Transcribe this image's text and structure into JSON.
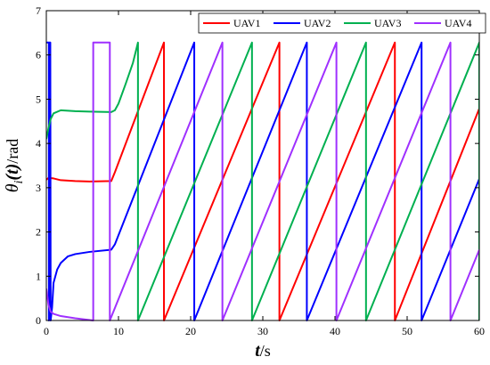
{
  "chart_data": {
    "type": "line",
    "title": "",
    "xlabel": {
      "main": "t",
      "unit": "/s"
    },
    "ylabel": {
      "main": "θ",
      "sub": "i",
      "arg": "(t)",
      "unit": "/rad"
    },
    "xlim": [
      0,
      60
    ],
    "ylim": [
      0,
      7
    ],
    "xticks": [
      0,
      10,
      20,
      30,
      40,
      50,
      60
    ],
    "yticks": [
      0,
      1,
      2,
      3,
      4,
      5,
      6,
      7
    ],
    "grid": false,
    "legend": {
      "position": "top-right",
      "orientation": "horizontal"
    },
    "series": [
      {
        "name": "UAV1",
        "color": "#ff0000",
        "points": [
          [
            0,
            3.18
          ],
          [
            0.3,
            3.22
          ],
          [
            1,
            3.21
          ],
          [
            2,
            3.17
          ],
          [
            4,
            3.15
          ],
          [
            6,
            3.14
          ],
          [
            9,
            3.15
          ],
          [
            9.5,
            3.35
          ],
          [
            16.3,
            6.28
          ],
          [
            16.3,
            0
          ],
          [
            32.3,
            6.28
          ],
          [
            32.3,
            0
          ],
          [
            48.3,
            6.28
          ],
          [
            48.3,
            0
          ],
          [
            60,
            4.79
          ]
        ]
      },
      {
        "name": "UAV2",
        "color": "#0000ff",
        "points": [
          [
            0,
            6.28
          ],
          [
            0.35,
            6.28
          ],
          [
            0.35,
            0
          ],
          [
            0.45,
            6.28
          ],
          [
            0.55,
            6.28
          ],
          [
            0.6,
            0
          ],
          [
            0.8,
            0.3
          ],
          [
            1,
            0.85
          ],
          [
            1.5,
            1.15
          ],
          [
            2,
            1.3
          ],
          [
            3,
            1.45
          ],
          [
            4,
            1.5
          ],
          [
            6,
            1.55
          ],
          [
            9,
            1.6
          ],
          [
            9.5,
            1.72
          ],
          [
            20.5,
            6.28
          ],
          [
            20.5,
            0
          ],
          [
            36.1,
            6.28
          ],
          [
            36.1,
            0
          ],
          [
            52,
            6.28
          ],
          [
            52,
            0
          ],
          [
            60,
            3.2
          ]
        ]
      },
      {
        "name": "UAV3",
        "color": "#00b050",
        "points": [
          [
            0,
            4.1
          ],
          [
            0.3,
            4.35
          ],
          [
            0.6,
            4.55
          ],
          [
            1,
            4.68
          ],
          [
            2,
            4.75
          ],
          [
            4,
            4.73
          ],
          [
            6,
            4.72
          ],
          [
            9,
            4.71
          ],
          [
            9.5,
            4.75
          ],
          [
            10,
            4.9
          ],
          [
            11,
            5.35
          ],
          [
            12,
            5.82
          ],
          [
            12.7,
            6.28
          ],
          [
            12.7,
            0
          ],
          [
            28.5,
            6.28
          ],
          [
            28.5,
            0
          ],
          [
            44.3,
            6.28
          ],
          [
            44.3,
            0
          ],
          [
            60,
            6.28
          ],
          [
            60,
            0
          ]
        ]
      },
      {
        "name": "UAV4",
        "color": "#9f30ff",
        "points": [
          [
            0,
            0.72
          ],
          [
            0.3,
            0.35
          ],
          [
            0.6,
            0.2
          ],
          [
            1,
            0.15
          ],
          [
            2,
            0.1
          ],
          [
            4,
            0.05
          ],
          [
            6.5,
            0
          ],
          [
            6.5,
            6.28
          ],
          [
            8.8,
            6.28
          ],
          [
            8.8,
            0
          ],
          [
            24.4,
            6.28
          ],
          [
            24.4,
            0
          ],
          [
            40.2,
            6.28
          ],
          [
            40.2,
            0
          ],
          [
            56,
            6.28
          ],
          [
            56,
            0
          ],
          [
            60,
            1.6
          ]
        ]
      }
    ]
  }
}
